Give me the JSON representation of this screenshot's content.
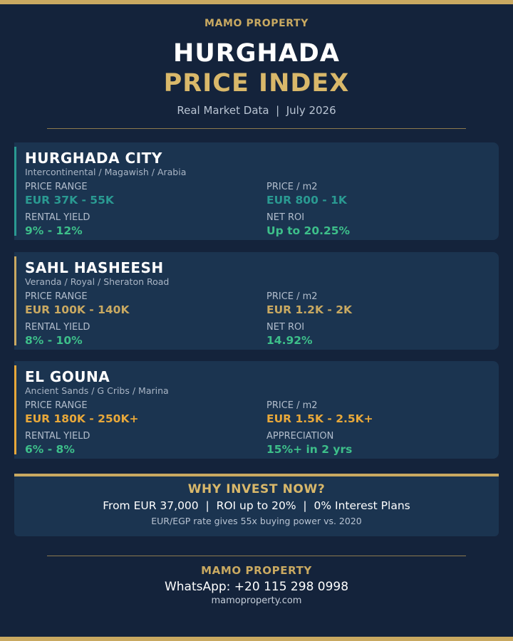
{
  "colors": {
    "background": "#14233b",
    "card": "#1b3450",
    "gold": "#c9a961",
    "teal": "#2a9a92",
    "green": "#3dbf8a",
    "orange": "#e8a83a"
  },
  "header": {
    "brand": "MAMO PROPERTY",
    "title_line1": "HURGHADA",
    "title_line2": "PRICE INDEX",
    "subtitle": "Real Market Data  |  July 2026"
  },
  "cards": [
    {
      "name": "HURGHADA CITY",
      "areas": "Intercontinental / Magawish / Arabia",
      "price_range_label": "PRICE RANGE",
      "price_range": "EUR 37K - 55K",
      "price_m2_label": "PRICE / m2",
      "price_m2": "EUR 800 - 1K",
      "yield_label": "RENTAL YIELD",
      "yield": "9% - 12%",
      "metric_label": "NET ROI",
      "metric": "Up to 20.25%"
    },
    {
      "name": "SAHL HASHEESH",
      "areas": "Veranda / Royal / Sheraton Road",
      "price_range_label": "PRICE RANGE",
      "price_range": "EUR 100K - 140K",
      "price_m2_label": "PRICE / m2",
      "price_m2": "EUR 1.2K - 2K",
      "yield_label": "RENTAL YIELD",
      "yield": "8% - 10%",
      "metric_label": "NET ROI",
      "metric": "14.92%"
    },
    {
      "name": "EL GOUNA",
      "areas": "Ancient Sands / G Cribs / Marina",
      "price_range_label": "PRICE RANGE",
      "price_range": "EUR 180K - 250K+",
      "price_m2_label": "PRICE / m2",
      "price_m2": "EUR 1.5K - 2.5K+",
      "yield_label": "RENTAL YIELD",
      "yield": "6% - 8%",
      "metric_label": "APPRECIATION",
      "metric": "15%+ in 2 yrs"
    }
  ],
  "invest": {
    "heading": "WHY INVEST NOW?",
    "points": "From EUR 37,000  |  ROI up to 20%  |  0% Interest Plans",
    "note": "EUR/EGP rate gives 55x buying power vs. 2020"
  },
  "footer": {
    "brand": "MAMO PROPERTY",
    "whatsapp": "WhatsApp: +20 115 298 0998",
    "website": "mamoproperty.com"
  }
}
